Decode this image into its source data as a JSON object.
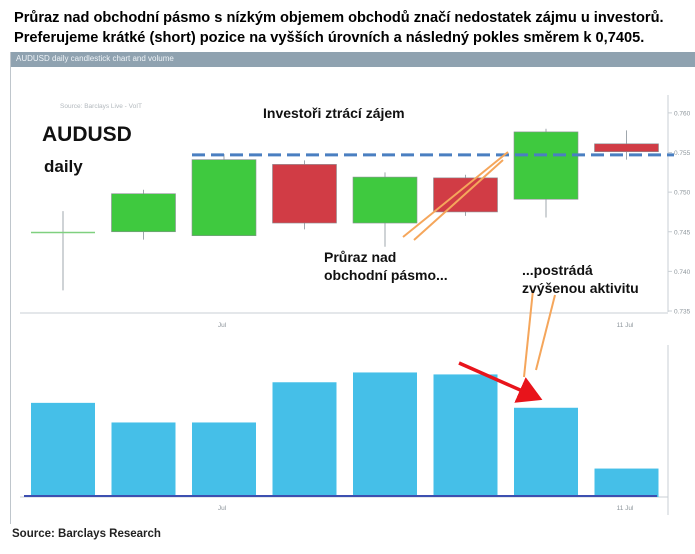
{
  "headline": {
    "line1": "Průraz nad obchodní pásmo s nízkým objemem obchodů značí nedostatek zájmu u investorů.",
    "line2": "Preferujeme krátké (short) pozice na vyšších úrovních a následný pokles směrem k 0,7405."
  },
  "chart_header": "AUDUSD daily candlestick chart and volume",
  "watermark": "Source: Barclays Live - VoIT",
  "instrument_title": "AUDUSD",
  "timeframe": "daily",
  "source": "Source: Barclays Research",
  "colors": {
    "bull": "#3fc93f",
    "bear": "#d13c45",
    "volume": "#45bfe8",
    "resistance": "#4a7fc1",
    "callout": "#f5a65b",
    "arrow": "#e8141b"
  },
  "chart_data": [
    {
      "type": "candlestick",
      "title": "AUDUSD daily",
      "x_ticks": [
        "Jul",
        "11 Jul"
      ],
      "y_ticks": [
        "0.760",
        "0.755",
        "0.750",
        "0.745",
        "0.740",
        "0.735"
      ],
      "ylim": [
        0.735,
        0.7615
      ],
      "grid": false,
      "candles": [
        {
          "open": 0.745,
          "close": 0.745,
          "high": 0.7476,
          "low": 0.7376,
          "direction": "flat"
        },
        {
          "open": 0.745,
          "close": 0.7498,
          "high": 0.7503,
          "low": 0.744,
          "direction": "up"
        },
        {
          "open": 0.7445,
          "close": 0.7541,
          "high": 0.7548,
          "low": 0.7445,
          "direction": "up"
        },
        {
          "open": 0.7535,
          "close": 0.7461,
          "high": 0.754,
          "low": 0.7453,
          "direction": "down"
        },
        {
          "open": 0.7461,
          "close": 0.7519,
          "high": 0.7525,
          "low": 0.7431,
          "direction": "up"
        },
        {
          "open": 0.7518,
          "close": 0.7475,
          "high": 0.7522,
          "low": 0.747,
          "direction": "down"
        },
        {
          "open": 0.7491,
          "close": 0.7576,
          "high": 0.758,
          "low": 0.7468,
          "direction": "up"
        },
        {
          "open": 0.7561,
          "close": 0.7551,
          "high": 0.7578,
          "low": 0.7541,
          "direction": "down"
        }
      ],
      "resistance_level": 0.7547,
      "annotations": [
        {
          "text": "Investoři ztrácí zájem"
        },
        {
          "text": "Průraz nad obchodní pásmo..."
        }
      ]
    },
    {
      "type": "bar",
      "title": "Volume",
      "x_ticks": [
        "Jul",
        "11 Jul"
      ],
      "values": [
        96,
        76,
        76,
        117,
        127,
        125,
        91,
        29
      ],
      "ylim": [
        0,
        155
      ],
      "annotations": [
        {
          "text": "...postrádá zvýšenou aktivitu"
        }
      ]
    }
  ]
}
